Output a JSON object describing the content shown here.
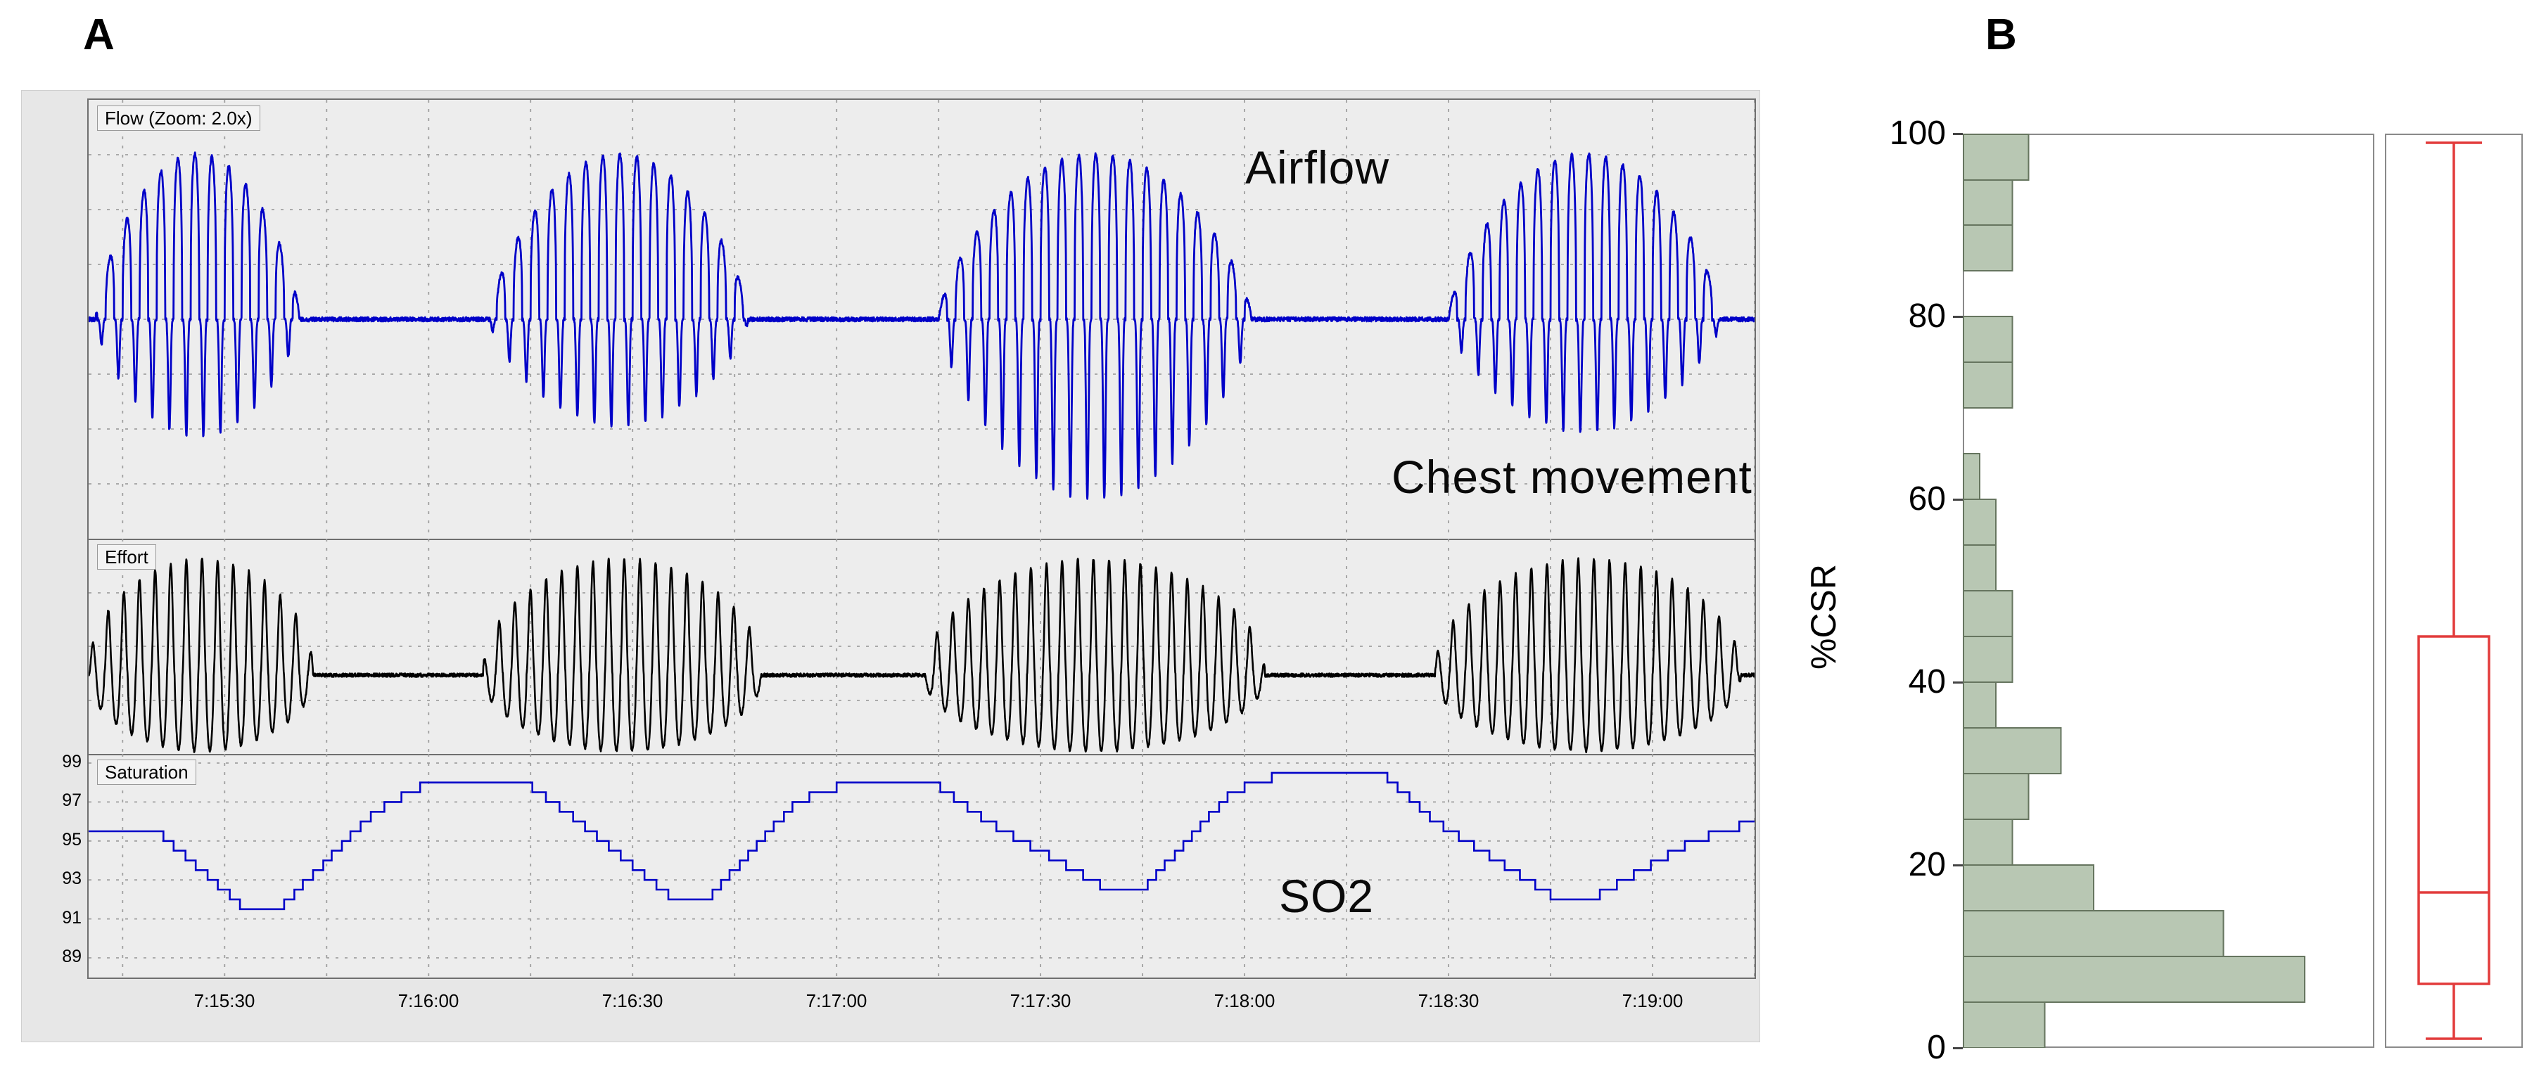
{
  "figure": {
    "panel_a_label": "A",
    "panel_b_label": "B"
  },
  "panel_a": {
    "flow_label": "Flow (Zoom: 2.0x)",
    "effort_label": "Effort",
    "saturation_label": "Saturation",
    "annotations": {
      "airflow": "Airflow",
      "chest_movement": "Chest movement",
      "so2": "SO2"
    },
    "saturation_axis_labels": [
      99,
      97,
      95,
      93,
      91,
      89
    ],
    "time_labels": [
      "7:15:30",
      "7:16:00",
      "7:16:30",
      "7:17:00",
      "7:17:30",
      "7:18:00",
      "7:18:30",
      "7:19:00"
    ]
  },
  "panel_b": {
    "ylabel": "%CSR",
    "y_ticks": [
      0,
      20,
      40,
      60,
      80,
      100
    ]
  },
  "colors": {
    "trace_blue": "#0000c8",
    "trace_black": "#000000",
    "hist_fill": "#b8c7b3",
    "hist_border": "#66755f",
    "box_red": "#e23b3b",
    "frame_gray": "#8a8a8a",
    "grid_gray": "#a0a0a0"
  },
  "chart_data": [
    {
      "type": "line",
      "title": "Polysomnogram excerpt showing Cheyne-Stokes respiration",
      "duration_seconds": 245,
      "time_tick_seconds": [
        20,
        50,
        80,
        110,
        140,
        170,
        200,
        230
      ],
      "time_tick_labels": [
        "7:15:30",
        "7:16:00",
        "7:16:30",
        "7:17:00",
        "7:17:30",
        "7:18:00",
        "7:18:30",
        "7:19:00"
      ],
      "series": [
        {
          "name": "Airflow (Flow, Zoom 2.0x)",
          "pattern": "crescendo-decrescendo breathing bursts separated by central apneas",
          "bursts_seconds": [
            [
              1,
              31
            ],
            [
              59,
              97
            ],
            [
              125,
              171
            ],
            [
              200,
              240
            ]
          ],
          "breath_period_seconds": 2.5,
          "deep_downstroke_scale_per_burst": [
            1.05,
            0.95,
            1.6,
            1.0
          ]
        },
        {
          "name": "Chest movement (Effort)",
          "pattern": "crescendo-decrescendo effort bursts separated by central apneas",
          "bursts_seconds": [
            [
              0,
              33
            ],
            [
              58,
              99
            ],
            [
              123,
              173
            ],
            [
              198,
              243
            ]
          ],
          "breath_period_seconds": 2.3
        },
        {
          "name": "SO2 (Saturation, %)",
          "axis_range": [
            89,
            99
          ],
          "pattern": "cyclic desaturation-resaturation oscillation",
          "keypoints_time_value": [
            [
              0,
              95.5
            ],
            [
              10,
              95.5
            ],
            [
              23,
              91.5
            ],
            [
              28,
              91.5
            ],
            [
              42,
              96.5
            ],
            [
              50,
              98
            ],
            [
              64,
              98
            ],
            [
              72,
              96
            ],
            [
              86,
              92
            ],
            [
              91,
              92
            ],
            [
              104,
              97
            ],
            [
              112,
              98
            ],
            [
              124,
              98
            ],
            [
              132,
              96
            ],
            [
              150,
              92.5
            ],
            [
              155,
              92.5
            ],
            [
              168,
              97.5
            ],
            [
              176,
              98.5
            ],
            [
              190,
              98.5
            ],
            [
              198,
              96
            ],
            [
              216,
              92
            ],
            [
              221,
              92
            ],
            [
              236,
              95
            ],
            [
              245,
              96
            ]
          ]
        }
      ]
    },
    {
      "type": "bar",
      "orientation": "horizontal",
      "title": "Distribution of %CSR",
      "ylabel": "%CSR",
      "ylim": [
        0,
        100
      ],
      "bin_width": 5,
      "bins_lower_edge": [
        0,
        5,
        10,
        15,
        20,
        25,
        30,
        35,
        40,
        45,
        50,
        55,
        60,
        65,
        70,
        75,
        80,
        85,
        90,
        95
      ],
      "counts": [
        5,
        21,
        16,
        8,
        3,
        4,
        6,
        2,
        3,
        3,
        2,
        2,
        1,
        0,
        3,
        3,
        0,
        3,
        3,
        4
      ]
    },
    {
      "type": "boxplot",
      "title": "%CSR box plot",
      "min": 1,
      "q1": 7,
      "median": 17,
      "q3": 45,
      "max": 99
    }
  ]
}
